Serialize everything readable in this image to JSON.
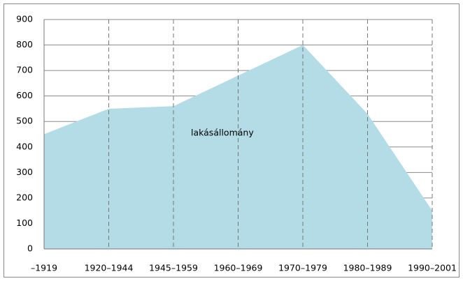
{
  "chart_data": {
    "type": "area",
    "categories": [
      "–1919",
      "1920–1944",
      "1945–1959",
      "1960–1969",
      "1970–1979",
      "1980–1989",
      "1990–2001"
    ],
    "series": [
      {
        "name": "lakásállomány",
        "color": "#b3dce6",
        "values": [
          450,
          550,
          560,
          680,
          800,
          530,
          150
        ]
      }
    ],
    "ylim": [
      0,
      900
    ],
    "yticks": [
      0,
      100,
      200,
      300,
      400,
      500,
      600,
      700,
      800,
      900
    ],
    "grid": true
  }
}
